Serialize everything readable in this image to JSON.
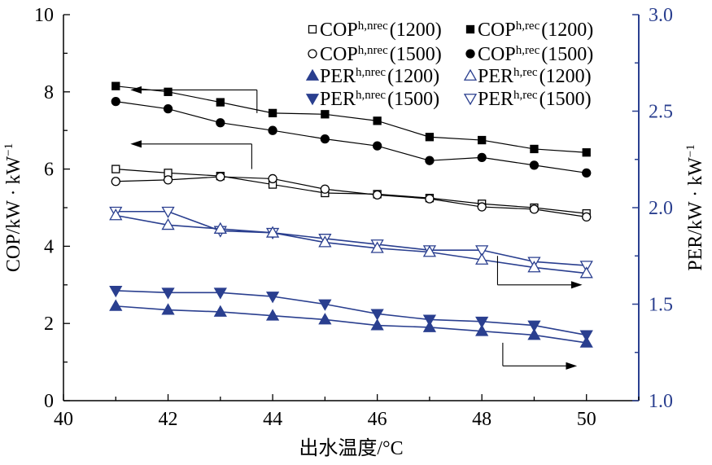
{
  "chart_data": {
    "type": "line",
    "xlabel": "出水温度/°C",
    "ylabel_left": "COP/kW · kW",
    "ylabel_left_sup": "−1",
    "ylabel_right": "PER/kW · kW",
    "ylabel_right_sup": "−1",
    "xlim": [
      40,
      51
    ],
    "ylim_left": [
      0,
      10
    ],
    "ylim_right": [
      1.0,
      3.0
    ],
    "x_ticks": [
      40,
      42,
      44,
      46,
      48,
      50
    ],
    "x_tick_labels": [
      "40",
      "42",
      "44",
      "46",
      "48",
      "50"
    ],
    "y_left_ticks": [
      0,
      2,
      4,
      6,
      8,
      10
    ],
    "y_left_tick_labels": [
      "0",
      "2",
      "4",
      "6",
      "8",
      "10"
    ],
    "y_right_ticks": [
      1.0,
      1.5,
      2.0,
      2.5,
      3.0
    ],
    "y_right_tick_labels": [
      "1.0",
      "1.5",
      "2.0",
      "2.5",
      "3.0"
    ],
    "x": [
      41,
      42,
      43,
      44,
      45,
      46,
      47,
      48,
      49,
      50
    ],
    "series": [
      {
        "name": "COP h,rec (1200)",
        "base": "COP",
        "sub": "h,rec",
        "param": "(1200)",
        "axis": "left",
        "marker": "square-filled",
        "color": "#000000",
        "values": [
          8.15,
          8.0,
          7.73,
          7.45,
          7.42,
          7.25,
          6.83,
          6.75,
          6.52,
          6.43
        ]
      },
      {
        "name": "COP h,rec (1500)",
        "base": "COP",
        "sub": "h,rec",
        "param": "(1500)",
        "axis": "left",
        "marker": "circle-filled",
        "color": "#000000",
        "values": [
          7.75,
          7.56,
          7.2,
          7.0,
          6.78,
          6.6,
          6.22,
          6.3,
          6.1,
          5.9
        ]
      },
      {
        "name": "COP h,nrec (1200)",
        "base": "COP",
        "sub": "h,nrec",
        "param": "(1200)",
        "axis": "left",
        "marker": "square-open",
        "color": "#000000",
        "values": [
          6.0,
          5.9,
          5.82,
          5.6,
          5.38,
          5.35,
          5.25,
          5.1,
          5.0,
          4.85
        ]
      },
      {
        "name": "COP h,nrec (1500)",
        "base": "COP",
        "sub": "h,nrec",
        "param": "(1500)",
        "axis": "left",
        "marker": "circle-open",
        "color": "#000000",
        "values": [
          5.68,
          5.72,
          5.8,
          5.75,
          5.48,
          5.33,
          5.23,
          5.02,
          4.96,
          4.76
        ]
      },
      {
        "name": "PER h,rec (1500)",
        "base": "PER",
        "sub": "h,rec",
        "param": "(1500)",
        "axis": "right",
        "marker": "tri-down-open",
        "color": "#2a3f8f",
        "values": [
          1.98,
          1.98,
          1.88,
          1.87,
          1.84,
          1.81,
          1.78,
          1.78,
          1.72,
          1.7
        ]
      },
      {
        "name": "PER h,rec (1200)",
        "base": "PER",
        "sub": "h,rec",
        "param": "(1200)",
        "axis": "right",
        "marker": "tri-up-open",
        "color": "#2a3f8f",
        "values": [
          1.96,
          1.91,
          1.89,
          1.87,
          1.82,
          1.79,
          1.77,
          1.73,
          1.69,
          1.66
        ]
      },
      {
        "name": "PER h,nrec (1500)",
        "base": "PER",
        "sub": "h,nrec",
        "param": "(1500)",
        "axis": "right",
        "marker": "tri-down-filled",
        "color": "#2a3f8f",
        "values": [
          1.57,
          1.56,
          1.56,
          1.54,
          1.5,
          1.45,
          1.42,
          1.41,
          1.39,
          1.34
        ]
      },
      {
        "name": "PER h,nrec (1200)",
        "base": "PER",
        "sub": "h,nrec",
        "param": "(1200)",
        "axis": "right",
        "marker": "tri-up-filled",
        "color": "#2a3f8f",
        "values": [
          1.49,
          1.47,
          1.46,
          1.44,
          1.42,
          1.39,
          1.38,
          1.36,
          1.34,
          1.3
        ]
      }
    ],
    "legend": [
      {
        "series": 2
      },
      {
        "series": 0
      },
      {
        "series": 3
      },
      {
        "series": 1
      },
      {
        "series": 7
      },
      {
        "series": 5
      },
      {
        "series": 6
      },
      {
        "series": 4
      }
    ],
    "legend_position": "top-right",
    "annotation_arrows": [
      {
        "label": "COP h,rec → left axis",
        "direction": "left",
        "from": {
          "x": 43.7,
          "y": 8.05
        },
        "stem_to_y": 7.45,
        "to_x": 41.3,
        "axis": "left"
      },
      {
        "label": "COP h,nrec → left axis",
        "direction": "left",
        "from": {
          "x": 43.6,
          "y": 6.65
        },
        "stem_to_y": 6.0,
        "to_x": 41.3,
        "axis": "left"
      },
      {
        "label": "PER h,rec → right axis",
        "direction": "right",
        "from": {
          "x": 48.3,
          "y": 1.75
        },
        "stem_to_y": 1.6,
        "to_x": 49.9,
        "axis": "right"
      },
      {
        "label": "PER h,nrec → right axis",
        "direction": "right",
        "from": {
          "x": 48.4,
          "y": 1.3
        },
        "stem_to_y": 1.18,
        "to_x": 49.8,
        "axis": "right"
      }
    ],
    "colors": {
      "left_axis": "#000000",
      "right_axis": "#2a3f8f",
      "blue_series": "#2a3f8f"
    }
  }
}
